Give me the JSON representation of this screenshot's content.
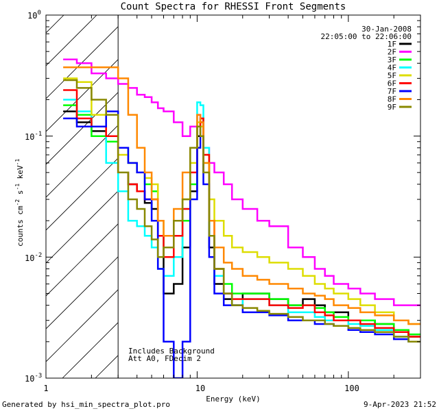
{
  "chart_data": {
    "type": "line",
    "title": "Count Spectra for RHESSI Front Segments",
    "xlabel": "Energy (keV)",
    "ylabel_parts": [
      "counts cm",
      "-2",
      " s",
      "-1",
      " keV",
      "-1"
    ],
    "xscale": "log",
    "yscale": "log",
    "xlim": [
      1,
      300
    ],
    "ylim": [
      0.001,
      1
    ],
    "x_tick_labels": [
      "1",
      "10",
      "100"
    ],
    "y_tick_labels": [
      {
        "base": "10",
        "exp": "-3"
      },
      {
        "base": "10",
        "exp": "-2"
      },
      {
        "base": "10",
        "exp": "-1"
      },
      {
        "base": "10",
        "exp": "0"
      }
    ],
    "date": "30-Jan-2008",
    "time_range": "22:05:00 to 22:06:00",
    "attenuator_note": "Includes Background",
    "config_note": "Att A0, FDecim 2",
    "hatched_region_below_keV": 3,
    "energy_bins_keV": [
      1.3,
      1.6,
      2,
      2.5,
      3,
      3.5,
      4,
      4.5,
      5,
      5.5,
      6,
      7,
      8,
      9,
      10,
      10.5,
      11,
      12,
      13,
      15,
      17,
      20,
      25,
      30,
      40,
      50,
      60,
      70,
      80,
      100,
      120,
      150,
      200,
      250,
      300
    ],
    "series": [
      {
        "name": "1F",
        "color": "#000000",
        "values": [
          0.16,
          0.13,
          0.11,
          0.09,
          0.05,
          0.04,
          0.035,
          0.028,
          0.025,
          0.01,
          0.005,
          0.006,
          0.012,
          0.035,
          0.1,
          0.13,
          0.05,
          0.012,
          0.006,
          0.0045,
          0.004,
          0.005,
          0.005,
          0.0045,
          0.004,
          0.0045,
          0.004,
          0.0035,
          0.0035,
          0.003,
          0.003,
          0.0028,
          0.0025,
          0.0022,
          0.002
        ]
      },
      {
        "name": "2F",
        "color": "#ff00ff",
        "values": [
          0.43,
          0.4,
          0.33,
          0.3,
          0.27,
          0.25,
          0.22,
          0.21,
          0.19,
          0.17,
          0.16,
          0.13,
          0.1,
          0.12,
          0.15,
          0.13,
          0.08,
          0.06,
          0.05,
          0.04,
          0.03,
          0.025,
          0.02,
          0.018,
          0.012,
          0.01,
          0.008,
          0.007,
          0.006,
          0.0055,
          0.005,
          0.0045,
          0.004,
          0.004,
          0.003
        ]
      },
      {
        "name": "3F",
        "color": "#00ff00",
        "values": [
          0.18,
          0.15,
          0.1,
          0.09,
          0.08,
          0.06,
          0.05,
          0.04,
          0.035,
          0.015,
          0.01,
          0.01,
          0.02,
          0.04,
          0.12,
          0.14,
          0.06,
          0.015,
          0.008,
          0.006,
          0.005,
          0.005,
          0.005,
          0.0045,
          0.004,
          0.004,
          0.0038,
          0.0035,
          0.0032,
          0.003,
          0.003,
          0.0028,
          0.0025,
          0.0023,
          0.002
        ]
      },
      {
        "name": "4F",
        "color": "#00ffff",
        "values": [
          0.2,
          0.16,
          0.12,
          0.06,
          0.035,
          0.02,
          0.018,
          0.015,
          0.012,
          0.008,
          0.007,
          0.01,
          0.025,
          0.08,
          0.19,
          0.18,
          0.08,
          0.015,
          0.007,
          0.005,
          0.004,
          0.0045,
          0.0045,
          0.004,
          0.0035,
          0.0035,
          0.0032,
          0.003,
          0.003,
          0.0028,
          0.0027,
          0.0025,
          0.0022,
          0.002,
          0.0018
        ]
      },
      {
        "name": "5F",
        "color": "#dddd00",
        "values": [
          0.3,
          0.28,
          0.15,
          0.1,
          0.07,
          0.06,
          0.05,
          0.045,
          0.04,
          0.02,
          0.015,
          0.02,
          0.03,
          0.06,
          0.13,
          0.12,
          0.07,
          0.03,
          0.02,
          0.015,
          0.012,
          0.011,
          0.01,
          0.009,
          0.008,
          0.007,
          0.006,
          0.0055,
          0.005,
          0.0045,
          0.004,
          0.0035,
          0.003,
          0.0028,
          0.0025
        ]
      },
      {
        "name": "6F",
        "color": "#ff0000",
        "values": [
          0.24,
          0.14,
          0.12,
          0.1,
          0.05,
          0.04,
          0.035,
          0.03,
          0.03,
          0.015,
          0.01,
          0.015,
          0.025,
          0.05,
          0.12,
          0.14,
          0.07,
          0.02,
          0.008,
          0.005,
          0.0045,
          0.0045,
          0.0045,
          0.004,
          0.0038,
          0.004,
          0.0035,
          0.0033,
          0.003,
          0.003,
          0.0028,
          0.0026,
          0.0024,
          0.0022,
          0.002
        ]
      },
      {
        "name": "7F",
        "color": "#0000ff",
        "values": [
          0.14,
          0.12,
          0.12,
          0.16,
          0.08,
          0.06,
          0.05,
          0.03,
          0.02,
          0.008,
          0.002,
          0.001,
          0.002,
          0.03,
          0.08,
          0.1,
          0.04,
          0.01,
          0.005,
          0.004,
          0.004,
          0.0035,
          0.0035,
          0.0033,
          0.003,
          0.003,
          0.0028,
          0.0028,
          0.0027,
          0.0025,
          0.0024,
          0.0023,
          0.0021,
          0.002,
          0.0018
        ]
      },
      {
        "name": "8F",
        "color": "#ff8800",
        "values": [
          0.37,
          0.37,
          0.37,
          0.37,
          0.3,
          0.15,
          0.08,
          0.05,
          0.03,
          0.02,
          0.015,
          0.025,
          0.05,
          0.08,
          0.15,
          0.13,
          0.06,
          0.02,
          0.012,
          0.009,
          0.008,
          0.007,
          0.0065,
          0.006,
          0.0055,
          0.005,
          0.0048,
          0.0045,
          0.004,
          0.0038,
          0.0035,
          0.0033,
          0.003,
          0.0028,
          0.0025
        ]
      },
      {
        "name": "9F",
        "color": "#888800",
        "values": [
          0.29,
          0.25,
          0.2,
          0.15,
          0.05,
          0.03,
          0.025,
          0.018,
          0.014,
          0.01,
          0.012,
          0.02,
          0.03,
          0.08,
          0.12,
          0.1,
          0.05,
          0.015,
          0.008,
          0.005,
          0.004,
          0.0038,
          0.0036,
          0.0034,
          0.0032,
          0.003,
          0.003,
          0.0028,
          0.0027,
          0.0026,
          0.0025,
          0.0024,
          0.0022,
          0.002,
          0.0018
        ]
      }
    ]
  },
  "footer": {
    "generated_by": "Generated by hsi_min_spectra_plot.pro",
    "timestamp": "9-Apr-2023 21:52"
  }
}
